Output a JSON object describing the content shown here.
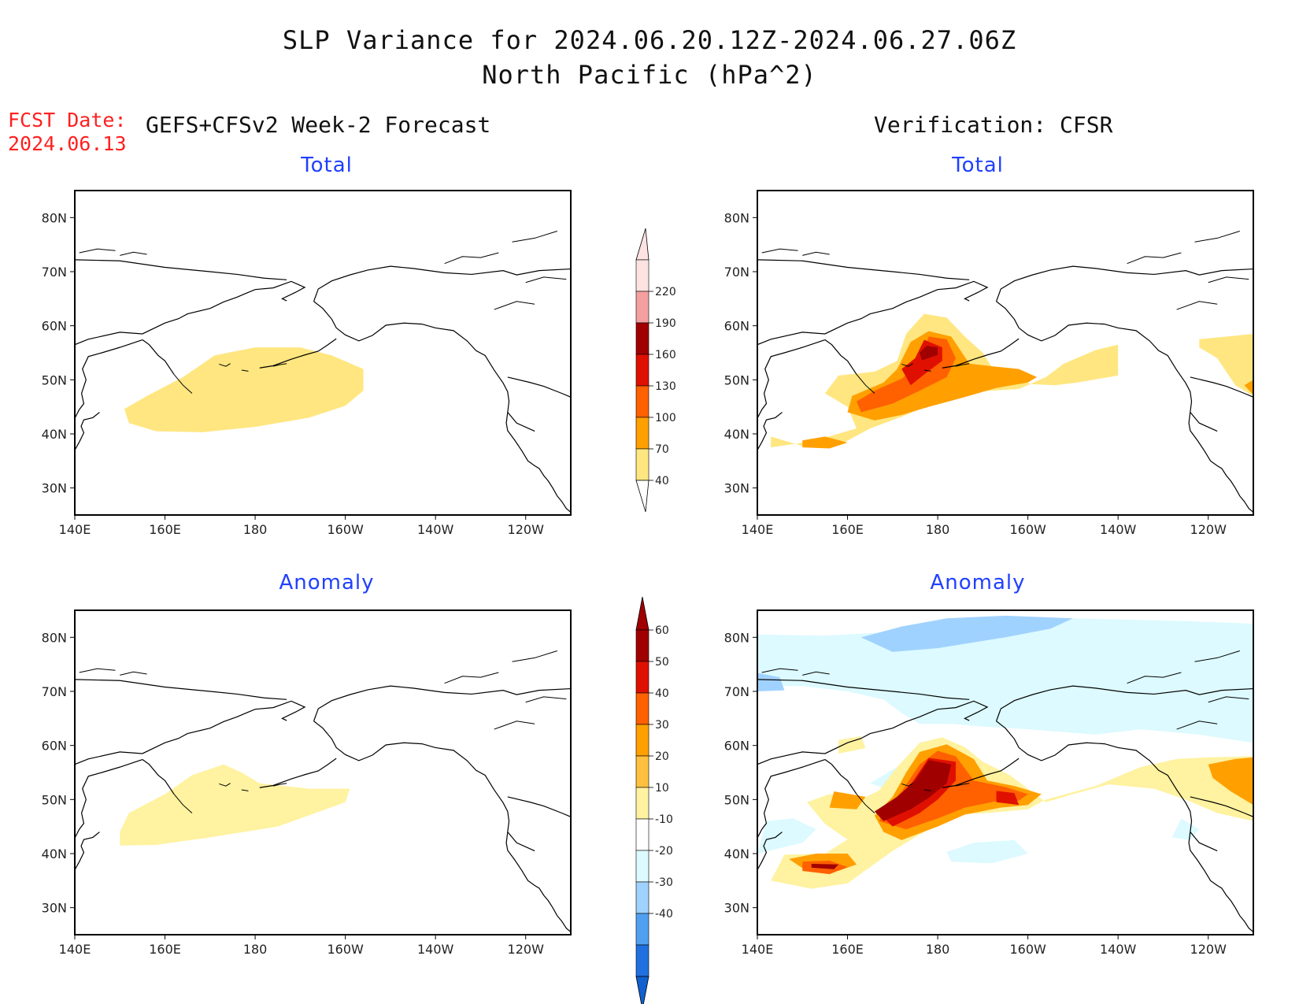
{
  "title": {
    "line1": "SLP Variance for 2024.06.20.12Z-2024.06.27.06Z",
    "line2": "North Pacific (hPa^2)"
  },
  "fcst": {
    "label": "FCST Date:",
    "date": "2024.06.13"
  },
  "subtitles": {
    "left": "GEFS+CFSv2 Week-2 Forecast",
    "right": "Verification: CFSR"
  },
  "panels": {
    "top_left": "Total",
    "top_right": "Total",
    "bottom_left": "Anomaly",
    "bottom_right": "Anomaly"
  },
  "axes": {
    "lat_labels": [
      "80N",
      "70N",
      "60N",
      "50N",
      "40N",
      "30N"
    ],
    "lon_labels": [
      "140E",
      "160E",
      "180",
      "160W",
      "140W",
      "120W"
    ]
  },
  "colorbar_total": {
    "levels": [
      "40",
      "70",
      "100",
      "130",
      "160",
      "190",
      "220"
    ],
    "colors": [
      "#ffe680",
      "#ffa000",
      "#ff6000",
      "#e01000",
      "#a00000",
      "#f4a0a0",
      "#fde2e2"
    ]
  },
  "colorbar_anomaly": {
    "levels": [
      "60",
      "50",
      "40",
      "30",
      "20",
      "10",
      "-10",
      "-20",
      "-30",
      "-40"
    ],
    "colors": [
      "#a00000",
      "#e01000",
      "#ff6000",
      "#ffa000",
      "#ffc040",
      "#fff2a0",
      "#ffffff",
      "#dcfaff",
      "#a0d2ff",
      "#50a0f0",
      "#2070e0",
      "#1060d0"
    ]
  },
  "map_colors": {
    "y1": "#ffe680",
    "y2": "#ffa000",
    "o": "#ff6000",
    "r": "#e01000",
    "dr": "#a00000",
    "ly": "#fff2a0",
    "lb1": "#dcfaff",
    "lb2": "#a0d2ff",
    "lb3": "#50a0f0"
  }
}
